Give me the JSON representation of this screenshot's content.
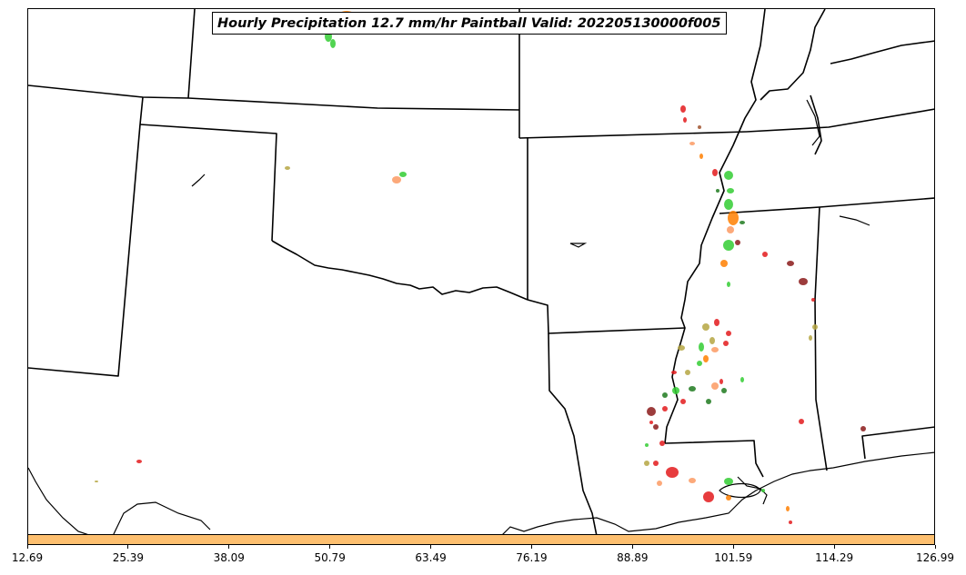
{
  "title": "Hourly Precipitation 12.7 mm/hr Paintball Valid: 202205130000f005",
  "colorbar": {
    "color": "#fdbf6f",
    "ticks": [
      "12.69",
      "25.39",
      "38.09",
      "50.79",
      "63.49",
      "76.19",
      "88.89",
      "101.59",
      "114.29",
      "126.99"
    ]
  },
  "colors": {
    "member_palette": [
      "#e31a1c",
      "#33cc33",
      "#fb9a63",
      "#8b1a1a",
      "#b5a642",
      "#1f7a1f",
      "#ff7f00",
      "#a0522d"
    ],
    "borders": "#000000"
  },
  "map": {
    "projection": "Lambert conformal",
    "features": [
      "state boundaries",
      "coastlines",
      "lakes"
    ]
  }
}
